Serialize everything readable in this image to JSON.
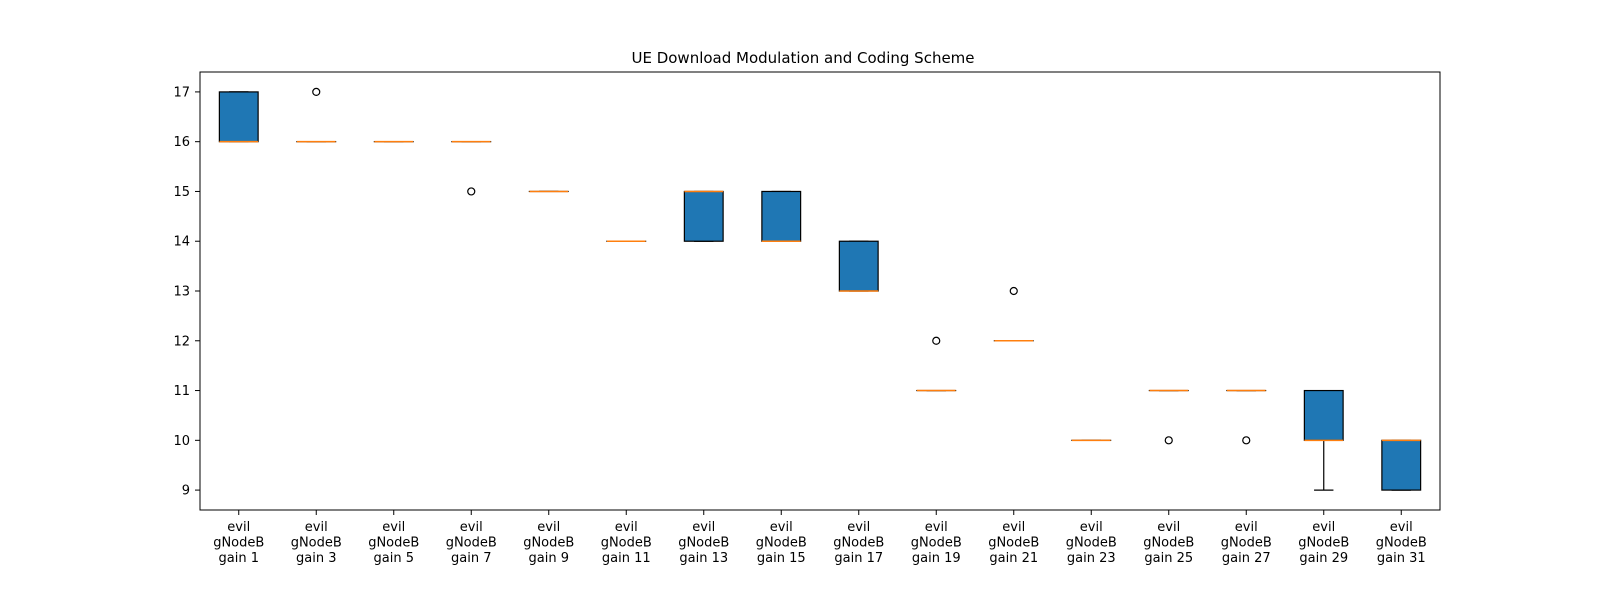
{
  "chart_data": {
    "type": "box",
    "title": "UE Download Modulation and Coding Scheme",
    "xlabel": "",
    "ylabel": "",
    "ylim": [
      8.6,
      17.4
    ],
    "yticks": [
      9,
      10,
      11,
      12,
      13,
      14,
      15,
      16,
      17
    ],
    "categories": [
      [
        "evil",
        "gNodeB",
        "gain 1"
      ],
      [
        "evil",
        "gNodeB",
        "gain 3"
      ],
      [
        "evil",
        "gNodeB",
        "gain 5"
      ],
      [
        "evil",
        "gNodeB",
        "gain 7"
      ],
      [
        "evil",
        "gNodeB",
        "gain 9"
      ],
      [
        "evil",
        "gNodeB",
        "gain 11"
      ],
      [
        "evil",
        "gNodeB",
        "gain 13"
      ],
      [
        "evil",
        "gNodeB",
        "gain 15"
      ],
      [
        "evil",
        "gNodeB",
        "gain 17"
      ],
      [
        "evil",
        "gNodeB",
        "gain 19"
      ],
      [
        "evil",
        "gNodeB",
        "gain 21"
      ],
      [
        "evil",
        "gNodeB",
        "gain 23"
      ],
      [
        "evil",
        "gNodeB",
        "gain 25"
      ],
      [
        "evil",
        "gNodeB",
        "gain 27"
      ],
      [
        "evil",
        "gNodeB",
        "gain 29"
      ],
      [
        "evil",
        "gNodeB",
        "gain 31"
      ]
    ],
    "boxes": [
      {
        "whislo": 16,
        "q1": 16,
        "med": 16,
        "q3": 17,
        "whishi": 17,
        "fliers": []
      },
      {
        "whislo": 16,
        "q1": 16,
        "med": 16,
        "q3": 16,
        "whishi": 16,
        "fliers": [
          17
        ]
      },
      {
        "whislo": 16,
        "q1": 16,
        "med": 16,
        "q3": 16,
        "whishi": 16,
        "fliers": []
      },
      {
        "whislo": 16,
        "q1": 16,
        "med": 16,
        "q3": 16,
        "whishi": 16,
        "fliers": [
          15
        ]
      },
      {
        "whislo": 15,
        "q1": 15,
        "med": 15,
        "q3": 15,
        "whishi": 15,
        "fliers": []
      },
      {
        "whislo": 14,
        "q1": 14,
        "med": 14,
        "q3": 14,
        "whishi": 14,
        "fliers": []
      },
      {
        "whislo": 14,
        "q1": 14,
        "med": 15,
        "q3": 15,
        "whishi": 15,
        "fliers": []
      },
      {
        "whislo": 14,
        "q1": 14,
        "med": 14,
        "q3": 15,
        "whishi": 15,
        "fliers": []
      },
      {
        "whislo": 13,
        "q1": 13,
        "med": 13,
        "q3": 14,
        "whishi": 14,
        "fliers": []
      },
      {
        "whislo": 11,
        "q1": 11,
        "med": 11,
        "q3": 11,
        "whishi": 11,
        "fliers": [
          12
        ]
      },
      {
        "whislo": 12,
        "q1": 12,
        "med": 12,
        "q3": 12,
        "whishi": 12,
        "fliers": [
          13
        ]
      },
      {
        "whislo": 10,
        "q1": 10,
        "med": 10,
        "q3": 10,
        "whishi": 10,
        "fliers": []
      },
      {
        "whislo": 11,
        "q1": 11,
        "med": 11,
        "q3": 11,
        "whishi": 11,
        "fliers": [
          10
        ]
      },
      {
        "whislo": 11,
        "q1": 11,
        "med": 11,
        "q3": 11,
        "whishi": 11,
        "fliers": [
          10
        ]
      },
      {
        "whislo": 9,
        "q1": 10,
        "med": 10,
        "q3": 11,
        "whishi": 11,
        "fliers": []
      },
      {
        "whislo": 9,
        "q1": 9,
        "med": 10,
        "q3": 10,
        "whishi": 10,
        "fliers": []
      }
    ],
    "colors": {
      "box_fill": "#1f77b4",
      "median": "#ff7f0e",
      "edge": "#000000"
    },
    "grid": false,
    "legend": "none"
  }
}
